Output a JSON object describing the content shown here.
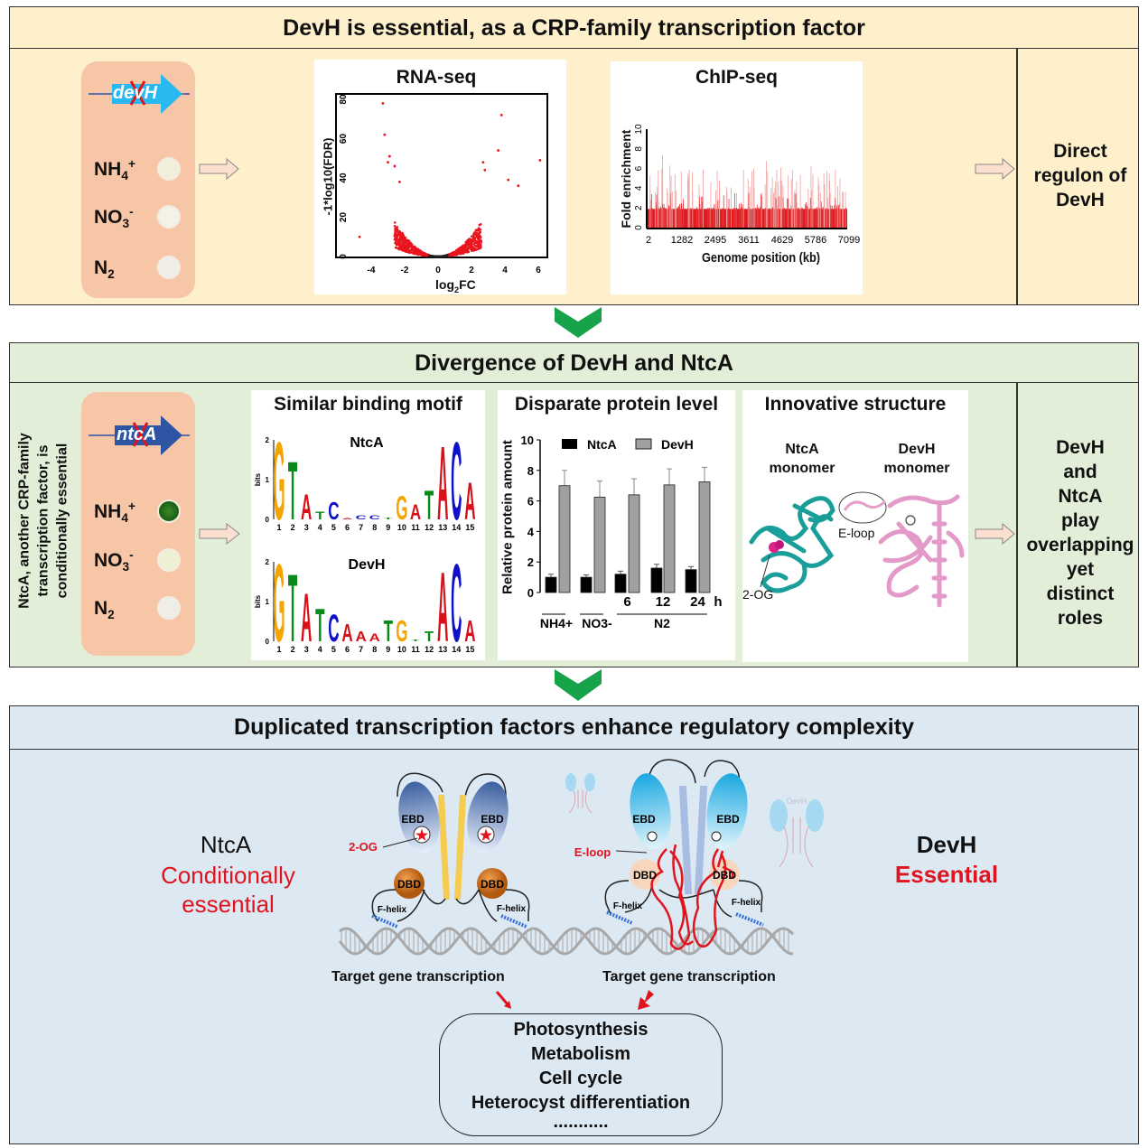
{
  "panel1": {
    "title": "DevH is essential, as a CRP-family transcription factor",
    "gene": "devH",
    "conditions": [
      {
        "base": "NH",
        "sub": "4",
        "sup": "+"
      },
      {
        "base": "NO",
        "sub": "3",
        "sup": "-"
      },
      {
        "base": "N",
        "sub": "2",
        "sup": ""
      }
    ],
    "rnaseq": {
      "title": "RNA-seq",
      "xlabel_base": "log",
      "xlabel_sub": "2",
      "xlabel_rest": "FC",
      "ylabel": "-1*log10(FDR)",
      "xticks": [
        "-4",
        "-2",
        "0",
        "2",
        "4",
        "6"
      ],
      "yticks": [
        "0",
        "20",
        "40",
        "60",
        "80"
      ]
    },
    "chipseq": {
      "title": "ChIP-seq",
      "xlabel": "Genome position (kb)",
      "ylabel": "Fold enrichment",
      "xticks": [
        "2",
        "1282",
        "2495",
        "3611",
        "4629",
        "5786",
        "7099"
      ],
      "yticks": [
        "0",
        "2",
        "4",
        "6",
        "8",
        "10"
      ]
    },
    "result": "Direct regulon of DevH"
  },
  "panel2": {
    "title": "Divergence of DevH and NtcA",
    "side_text": [
      "NtcA, another CRP-family",
      "transcription factor, is",
      "conditionally essential"
    ],
    "gene": "ntcA",
    "conditions": [
      {
        "base": "NH",
        "sub": "4",
        "sup": "+"
      },
      {
        "base": "NO",
        "sub": "3",
        "sup": "-"
      },
      {
        "base": "N",
        "sub": "2",
        "sup": ""
      }
    ],
    "motif": {
      "title": "Similar binding motif",
      "ylabel": "bits",
      "logos": [
        {
          "name": "NtcA",
          "letters": "GTATCACCTGATACA",
          "bits": [
            2.0,
            1.5,
            0.65,
            0.2,
            0.45,
            0.03,
            0.1,
            0.1,
            0.05,
            0.6,
            0.4,
            0.75,
            1.9,
            2.0,
            0.95
          ]
        },
        {
          "name": "DevH",
          "letters": "GTATCAAATGTTACA",
          "bits": [
            2.0,
            1.75,
            1.25,
            0.85,
            0.7,
            0.45,
            0.25,
            0.2,
            0.55,
            0.55,
            0.05,
            0.25,
            1.8,
            2.0,
            0.55
          ]
        }
      ],
      "positions": [
        "1",
        "2",
        "3",
        "4",
        "5",
        "6",
        "7",
        "8",
        "9",
        "10",
        "11",
        "12",
        "13",
        "14",
        "15"
      ],
      "yticks": [
        "0",
        "1",
        "2"
      ]
    },
    "structure": {
      "title": "Innovative structure",
      "ntca_label": [
        "NtcA",
        "monomer"
      ],
      "devh_label": [
        "DevH",
        "monomer"
      ],
      "eloop": "E-loop",
      "og": "2-OG"
    },
    "result": [
      "DevH",
      "and",
      "NtcA",
      "play",
      "overlapping",
      "yet",
      "distinct",
      "roles"
    ]
  },
  "chart_data": [
    {
      "type": "bar",
      "title": "Disparate protein level",
      "ylabel": "Relative protein amount",
      "ylim": [
        0,
        10
      ],
      "yticks": [
        "0",
        "2",
        "4",
        "6",
        "8",
        "10"
      ],
      "categories": [
        "NH4+",
        "NO3-",
        "6",
        "12",
        "24"
      ],
      "time_unit": "h",
      "group_label": "N2",
      "series": [
        {
          "name": "NtcA",
          "color": "#000000",
          "values": [
            1.0,
            1.0,
            1.2,
            1.6,
            1.5
          ],
          "errors": [
            0.2,
            0.15,
            0.2,
            0.25,
            0.2
          ]
        },
        {
          "name": "DevH",
          "color": "#a0a0a0",
          "values": [
            7.0,
            6.25,
            6.4,
            7.05,
            7.25
          ],
          "errors": [
            1.0,
            1.05,
            1.05,
            1.05,
            0.95
          ]
        }
      ]
    }
  ],
  "panel3": {
    "title": "Duplicated transcription factors enhance regulatory complexity",
    "left": {
      "name": "NtcA",
      "status": [
        "Conditionally",
        "essential"
      ]
    },
    "right": {
      "name": "DevH",
      "status": "Essential"
    },
    "labels": {
      "ebd": "EBD",
      "dbd": "DBD",
      "fhelix": "F-helix",
      "og": "2-OG",
      "eloop": "E-loop",
      "target": "Target gene transcription",
      "ghost": "DevH"
    },
    "outcomes": [
      "Photosynthesis",
      "Metabolism",
      "Cell cycle",
      "Heterocyst differentiation",
      "..........."
    ]
  },
  "colors": {
    "panel1_bg": "#fdf0cb",
    "panel2_bg": "#e2eed8",
    "panel3_bg": "#dce8f2",
    "chevron": "#16a34a",
    "red": "#e0141e",
    "devh_gene": "#29b9f0",
    "ntca_gene": "#2d55a4"
  }
}
